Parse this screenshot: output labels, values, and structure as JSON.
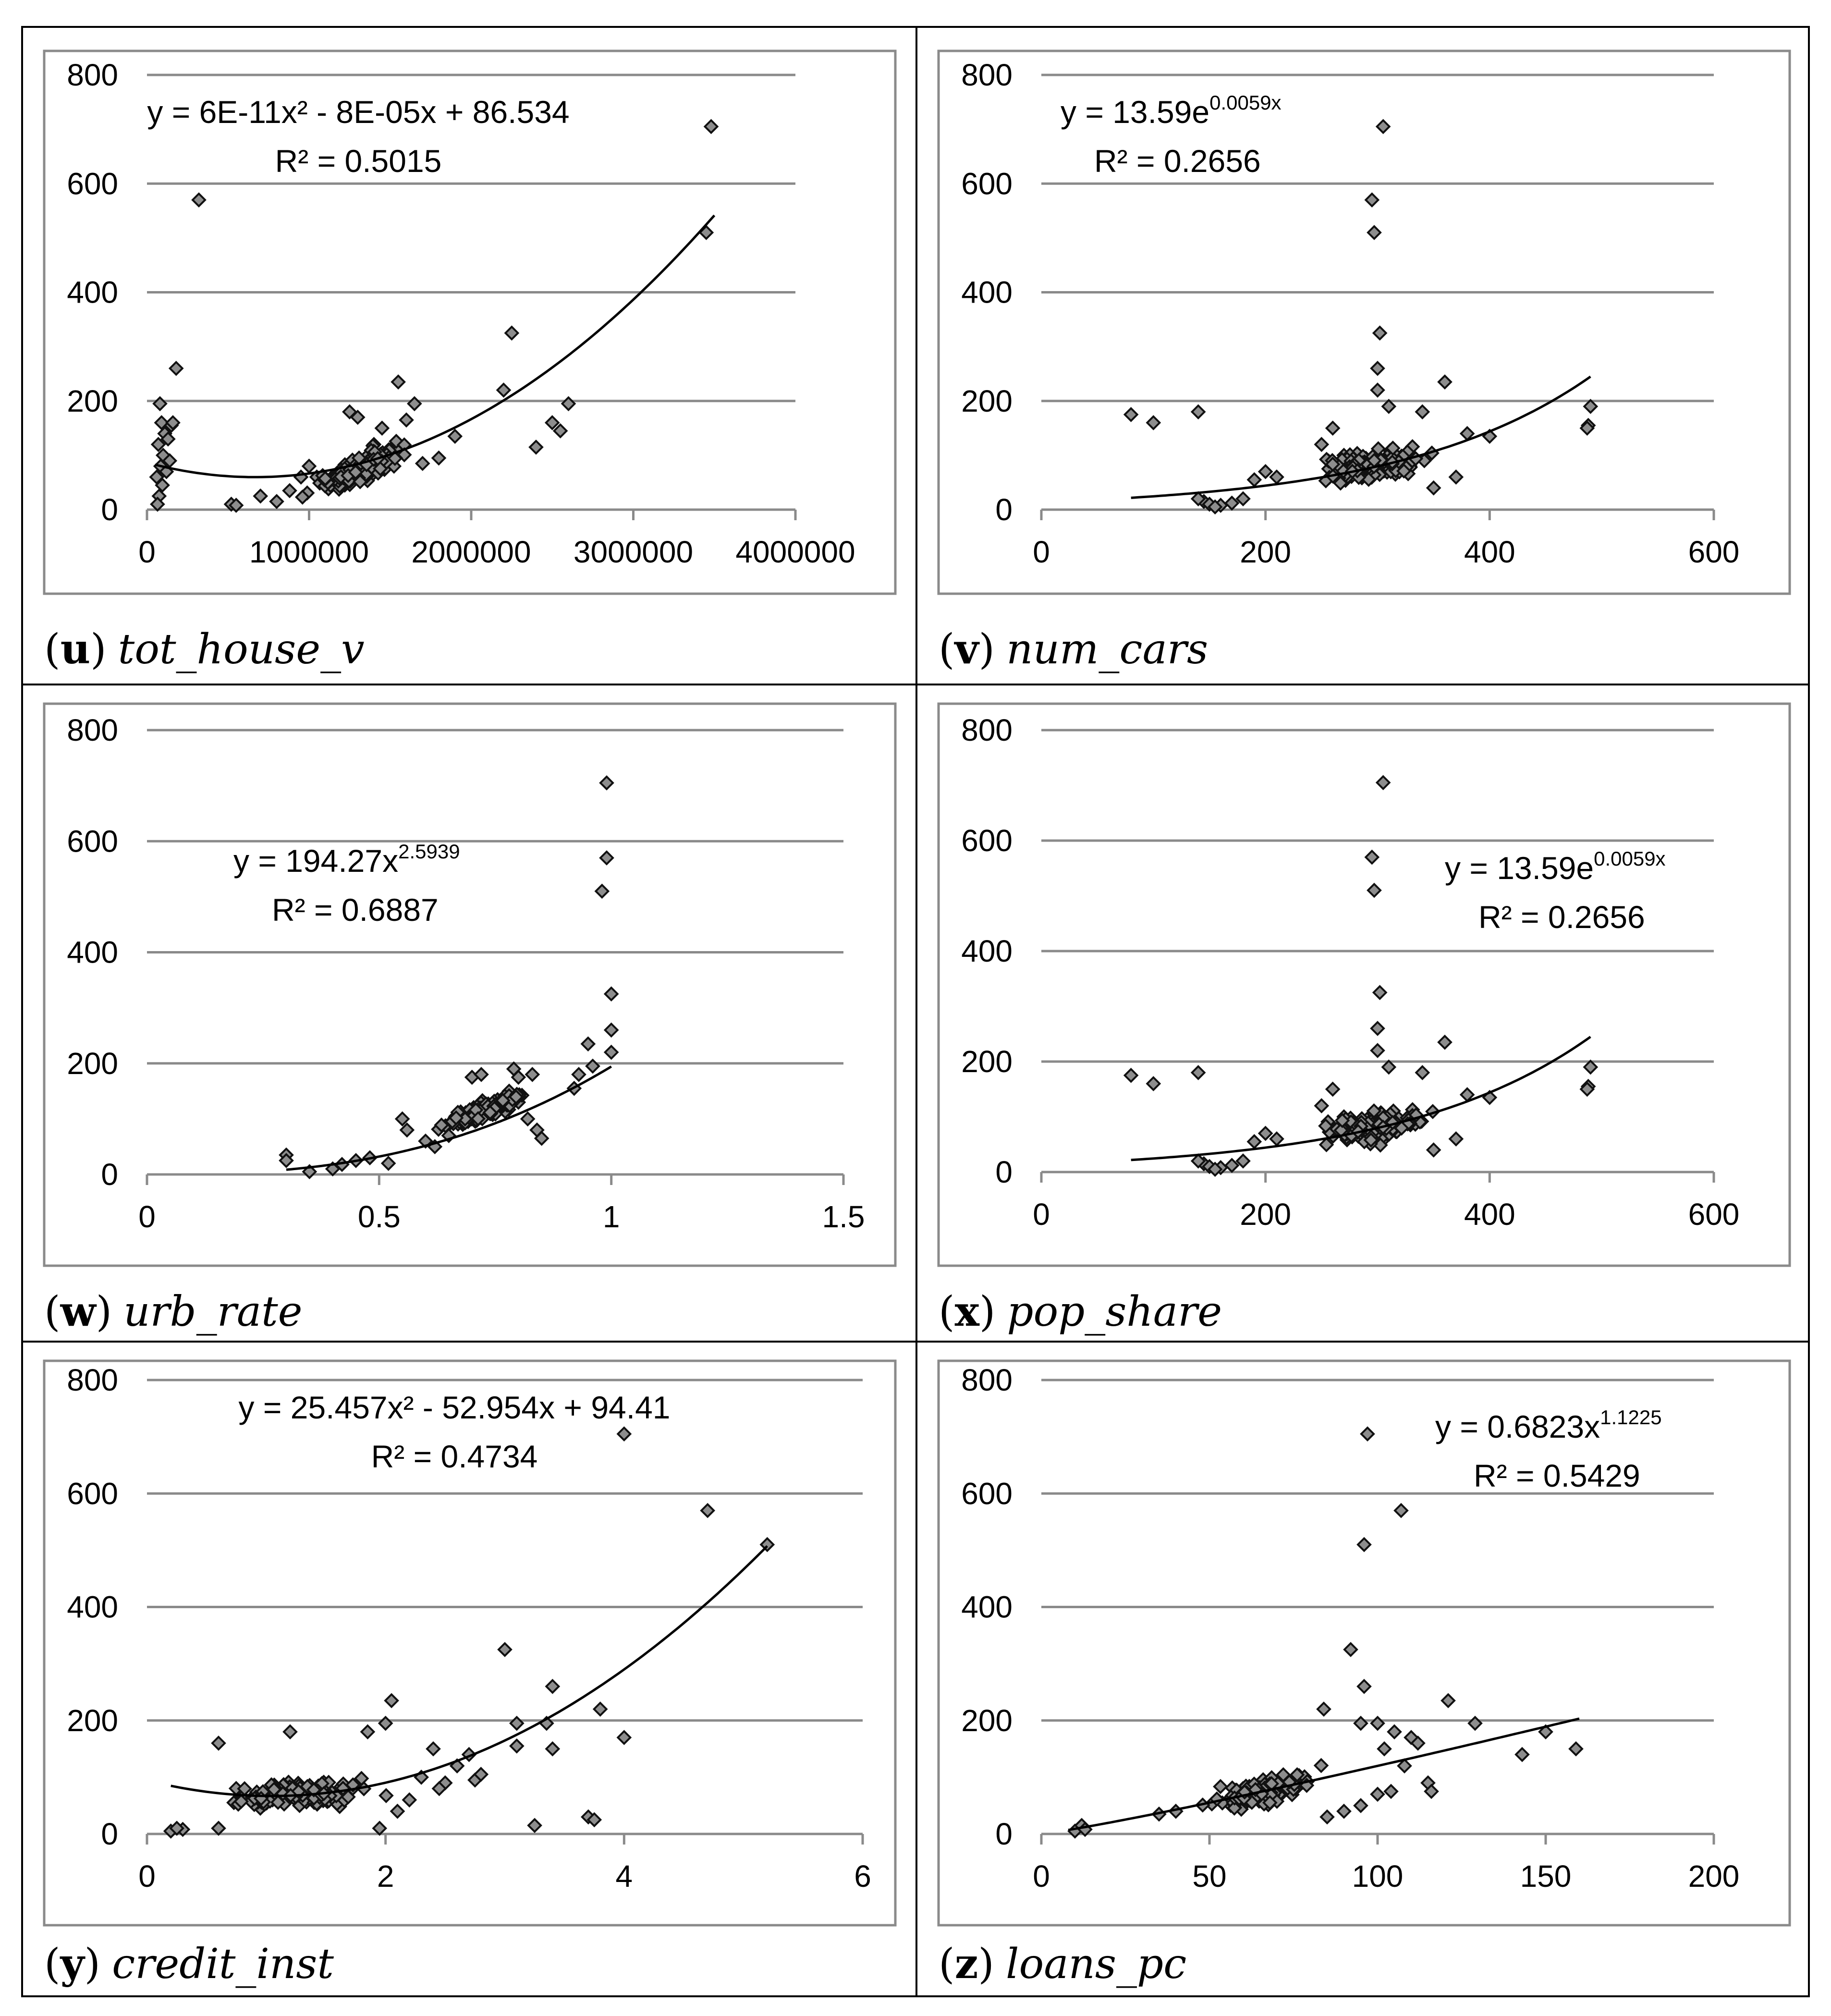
{
  "chart_data": [
    {
      "id": "u",
      "type": "scatter",
      "panel_letter": "u",
      "panel_label": "tot_house_v",
      "xlim": [
        0,
        4000000
      ],
      "ylim": [
        0,
        800
      ],
      "xticks": [
        "0",
        "1000000",
        "2000000",
        "3000000",
        "4000000"
      ],
      "yticks": [
        "0",
        "200",
        "400",
        "600",
        "800"
      ],
      "xtick_values": [
        0,
        1000000,
        2000000,
        3000000,
        4000000
      ],
      "ytick_values": [
        0,
        200,
        400,
        600,
        800
      ],
      "equation": "y = 6E-11x² - 8E-05x + 86.534",
      "r_squared": "R² = 0.5015",
      "trend": {
        "kind": "poly",
        "coeffs": [
          86.534,
          -8e-05,
          6e-11
        ],
        "x_range": [
          50000,
          3500000
        ]
      },
      "cloud": {
        "x_center": 1300000,
        "x_spread": 300000,
        "y_base": 75,
        "y_slope": 0.00013,
        "y_noise": 40
      },
      "points": [
        [
          3480000,
          705
        ],
        [
          320000,
          570
        ],
        [
          3450000,
          510
        ],
        [
          2250000,
          325
        ],
        [
          180000,
          260
        ],
        [
          2200000,
          220
        ],
        [
          1550000,
          235
        ],
        [
          2600000,
          195
        ],
        [
          2500000,
          160
        ],
        [
          2550000,
          145
        ],
        [
          2400000,
          115
        ],
        [
          1900000,
          135
        ],
        [
          1800000,
          95
        ],
        [
          1700000,
          85
        ],
        [
          80000,
          195
        ],
        [
          90000,
          160
        ],
        [
          110000,
          140
        ],
        [
          70000,
          120
        ],
        [
          100000,
          100
        ],
        [
          85000,
          80
        ],
        [
          60000,
          60
        ],
        [
          95000,
          45
        ],
        [
          75000,
          25
        ],
        [
          65000,
          10
        ],
        [
          150000,
          155
        ],
        [
          130000,
          130
        ],
        [
          140000,
          90
        ],
        [
          120000,
          70
        ],
        [
          160000,
          160
        ],
        [
          520000,
          10
        ],
        [
          550000,
          8
        ],
        [
          700000,
          25
        ],
        [
          800000,
          15
        ],
        [
          880000,
          35
        ],
        [
          950000,
          60
        ],
        [
          1000000,
          80
        ],
        [
          1100000,
          55
        ],
        [
          1250000,
          180
        ],
        [
          1300000,
          170
        ],
        [
          1400000,
          120
        ],
        [
          1450000,
          150
        ],
        [
          1650000,
          195
        ],
        [
          1600000,
          165
        ],
        [
          1500000,
          110
        ]
      ]
    },
    {
      "id": "v",
      "type": "scatter",
      "panel_letter": "v",
      "panel_label": "num_cars",
      "xlim": [
        0,
        600
      ],
      "ylim": [
        0,
        800
      ],
      "xticks": [
        "0",
        "200",
        "400",
        "600"
      ],
      "yticks": [
        "0",
        "200",
        "400",
        "600",
        "800"
      ],
      "xtick_values": [
        0,
        200,
        400,
        600
      ],
      "ytick_values": [
        0,
        200,
        400,
        600,
        800
      ],
      "equation": "y = 13.59e",
      "equation_exp": "0.0059x",
      "r_squared": "R² = 0.2656",
      "trend": {
        "kind": "exp",
        "coeffs": [
          13.59,
          0.0059
        ],
        "x_range": [
          80,
          490
        ]
      },
      "cloud": {
        "x_center": 295,
        "x_spread": 45,
        "y_base": 80,
        "y_slope": 0.3,
        "y_noise": 40
      },
      "points": [
        [
          305,
          705
        ],
        [
          295,
          570
        ],
        [
          297,
          510
        ],
        [
          302,
          325
        ],
        [
          300,
          260
        ],
        [
          360,
          235
        ],
        [
          300,
          220
        ],
        [
          490,
          190
        ],
        [
          488,
          155
        ],
        [
          487,
          150
        ],
        [
          80,
          175
        ],
        [
          100,
          160
        ],
        [
          140,
          180
        ],
        [
          145,
          15
        ],
        [
          150,
          10
        ],
        [
          160,
          8
        ],
        [
          170,
          12
        ],
        [
          180,
          20
        ],
        [
          140,
          20
        ],
        [
          155,
          5
        ],
        [
          190,
          55
        ],
        [
          200,
          70
        ],
        [
          210,
          60
        ],
        [
          260,
          150
        ],
        [
          310,
          190
        ],
        [
          340,
          180
        ],
        [
          380,
          140
        ],
        [
          400,
          135
        ],
        [
          370,
          60
        ],
        [
          350,
          40
        ],
        [
          250,
          120
        ],
        [
          270,
          100
        ]
      ]
    },
    {
      "id": "w",
      "type": "scatter",
      "panel_letter": "w",
      "panel_label": "urb_rate",
      "xlim": [
        0,
        1.5
      ],
      "ylim": [
        0,
        800
      ],
      "xticks": [
        "0",
        "0.5",
        "1",
        "1.5"
      ],
      "yticks": [
        "0",
        "200",
        "400",
        "600",
        "800"
      ],
      "xtick_values": [
        0,
        0.5,
        1,
        1.5
      ],
      "ytick_values": [
        0,
        200,
        400,
        600,
        800
      ],
      "equation": "y = 194.27x",
      "equation_exp": "2.5939",
      "r_squared": "R² = 0.6887",
      "trend": {
        "kind": "power",
        "coeffs": [
          194.27,
          2.5939
        ],
        "x_range": [
          0.3,
          1.0
        ]
      },
      "cloud": {
        "x_center": 0.72,
        "x_spread": 0.09,
        "y_base": 30,
        "y_slope": 0,
        "y_noise": 25,
        "y_fn": "power"
      },
      "points": [
        [
          0.99,
          705
        ],
        [
          0.99,
          570
        ],
        [
          0.98,
          510
        ],
        [
          1.0,
          325
        ],
        [
          1.0,
          260
        ],
        [
          1.0,
          220
        ],
        [
          0.95,
          235
        ],
        [
          0.96,
          195
        ],
        [
          0.93,
          180
        ],
        [
          0.92,
          155
        ],
        [
          0.3,
          35
        ],
        [
          0.3,
          25
        ],
        [
          0.35,
          5
        ],
        [
          0.4,
          10
        ],
        [
          0.42,
          18
        ],
        [
          0.45,
          25
        ],
        [
          0.48,
          30
        ],
        [
          0.52,
          20
        ],
        [
          0.55,
          100
        ],
        [
          0.56,
          80
        ],
        [
          0.6,
          60
        ],
        [
          0.62,
          50
        ],
        [
          0.7,
          175
        ],
        [
          0.72,
          180
        ],
        [
          0.79,
          190
        ],
        [
          0.8,
          175
        ],
        [
          0.83,
          180
        ],
        [
          0.85,
          65
        ],
        [
          0.84,
          80
        ],
        [
          0.78,
          150
        ],
        [
          0.65,
          70
        ],
        [
          0.68,
          90
        ],
        [
          0.75,
          110
        ],
        [
          0.8,
          130
        ],
        [
          0.82,
          100
        ]
      ]
    },
    {
      "id": "x",
      "type": "scatter",
      "panel_letter": "x",
      "panel_label": "pop_share",
      "xlim": [
        0,
        600
      ],
      "ylim": [
        0,
        800
      ],
      "xticks": [
        "0",
        "200",
        "400",
        "600"
      ],
      "yticks": [
        "0",
        "200",
        "400",
        "600",
        "800"
      ],
      "xtick_values": [
        0,
        200,
        400,
        600
      ],
      "ytick_values": [
        0,
        200,
        400,
        600,
        800
      ],
      "equation": "y = 13.59e",
      "equation_exp": "0.0059x",
      "r_squared": "R² = 0.2656",
      "trend": {
        "kind": "exp",
        "coeffs": [
          13.59,
          0.0059
        ],
        "x_range": [
          80,
          490
        ]
      },
      "cloud": {
        "x_center": 295,
        "x_spread": 45,
        "y_base": 80,
        "y_slope": 0.3,
        "y_noise": 40
      },
      "points": [
        [
          305,
          705
        ],
        [
          295,
          570
        ],
        [
          297,
          510
        ],
        [
          302,
          325
        ],
        [
          300,
          260
        ],
        [
          360,
          235
        ],
        [
          300,
          220
        ],
        [
          490,
          190
        ],
        [
          488,
          155
        ],
        [
          487,
          150
        ],
        [
          80,
          175
        ],
        [
          100,
          160
        ],
        [
          140,
          180
        ],
        [
          145,
          15
        ],
        [
          150,
          10
        ],
        [
          160,
          8
        ],
        [
          170,
          12
        ],
        [
          180,
          20
        ],
        [
          140,
          20
        ],
        [
          155,
          5
        ],
        [
          190,
          55
        ],
        [
          200,
          70
        ],
        [
          210,
          60
        ],
        [
          260,
          150
        ],
        [
          310,
          190
        ],
        [
          340,
          180
        ],
        [
          380,
          140
        ],
        [
          400,
          135
        ],
        [
          370,
          60
        ],
        [
          350,
          40
        ],
        [
          250,
          120
        ],
        [
          270,
          100
        ]
      ]
    },
    {
      "id": "y",
      "type": "scatter",
      "panel_letter": "y",
      "panel_label": "credit_inst",
      "xlim": [
        0,
        6
      ],
      "ylim": [
        0,
        800
      ],
      "xticks": [
        "0",
        "2",
        "4",
        "6"
      ],
      "yticks": [
        "0",
        "200",
        "400",
        "600",
        "800"
      ],
      "xtick_values": [
        0,
        2,
        4,
        6
      ],
      "ytick_values": [
        0,
        200,
        400,
        600,
        800
      ],
      "equation": "y = 25.457x² - 52.954x + 94.41",
      "r_squared": "R² = 0.4734",
      "trend": {
        "kind": "poly",
        "coeffs": [
          94.41,
          -52.954,
          25.457
        ],
        "x_range": [
          0.2,
          5.2
        ]
      },
      "cloud": {
        "x_center": 1.3,
        "x_spread": 0.6,
        "y_base": 70,
        "y_slope": 10,
        "y_noise": 35
      },
      "points": [
        [
          4.0,
          705
        ],
        [
          4.7,
          570
        ],
        [
          5.2,
          510
        ],
        [
          3.0,
          325
        ],
        [
          3.4,
          260
        ],
        [
          2.05,
          235
        ],
        [
          3.8,
          220
        ],
        [
          3.1,
          195
        ],
        [
          3.35,
          195
        ],
        [
          4.0,
          170
        ],
        [
          3.1,
          155
        ],
        [
          3.4,
          150
        ],
        [
          3.25,
          15
        ],
        [
          3.7,
          30
        ],
        [
          3.75,
          25
        ],
        [
          0.2,
          5
        ],
        [
          0.3,
          8
        ],
        [
          0.25,
          10
        ],
        [
          0.6,
          160
        ],
        [
          1.2,
          180
        ],
        [
          1.85,
          180
        ],
        [
          2.0,
          195
        ],
        [
          2.4,
          150
        ],
        [
          2.7,
          140
        ],
        [
          2.75,
          95
        ],
        [
          2.8,
          105
        ],
        [
          1.95,
          10
        ],
        [
          0.6,
          10
        ],
        [
          2.3,
          100
        ],
        [
          2.5,
          90
        ],
        [
          2.2,
          60
        ],
        [
          2.1,
          40
        ],
        [
          2.45,
          80
        ],
        [
          2.6,
          120
        ]
      ]
    },
    {
      "id": "z",
      "type": "scatter",
      "panel_letter": "z",
      "panel_label": "loans_pc",
      "xlim": [
        0,
        200
      ],
      "ylim": [
        0,
        800
      ],
      "xticks": [
        "0",
        "50",
        "100",
        "150",
        "200"
      ],
      "yticks": [
        "0",
        "200",
        "400",
        "600",
        "800"
      ],
      "xtick_values": [
        0,
        50,
        100,
        150,
        200
      ],
      "ytick_values": [
        0,
        200,
        400,
        600,
        800
      ],
      "equation": "y = 0.6823x",
      "equation_exp": "1.1225",
      "r_squared": "R² = 0.5429",
      "trend": {
        "kind": "power",
        "coeffs": [
          0.6823,
          1.1225
        ],
        "x_range": [
          8,
          160
        ]
      },
      "cloud": {
        "x_center": 65,
        "x_spread": 15,
        "y_base": 0,
        "y_slope": 0,
        "y_noise": 35,
        "y_fn": "power"
      },
      "points": [
        [
          97,
          705
        ],
        [
          107,
          570
        ],
        [
          96,
          510
        ],
        [
          92,
          325
        ],
        [
          96,
          260
        ],
        [
          121,
          235
        ],
        [
          84,
          220
        ],
        [
          129,
          195
        ],
        [
          150,
          180
        ],
        [
          159,
          150
        ],
        [
          143,
          140
        ],
        [
          10,
          5
        ],
        [
          12,
          15
        ],
        [
          13,
          8
        ],
        [
          35,
          35
        ],
        [
          40,
          40
        ],
        [
          95,
          195
        ],
        [
          100,
          195
        ],
        [
          105,
          180
        ],
        [
          110,
          170
        ],
        [
          115,
          90
        ],
        [
          116,
          75
        ],
        [
          100,
          70
        ],
        [
          104,
          75
        ],
        [
          85,
          30
        ],
        [
          90,
          40
        ],
        [
          95,
          50
        ],
        [
          108,
          120
        ],
        [
          112,
          160
        ],
        [
          102,
          150
        ]
      ]
    }
  ]
}
